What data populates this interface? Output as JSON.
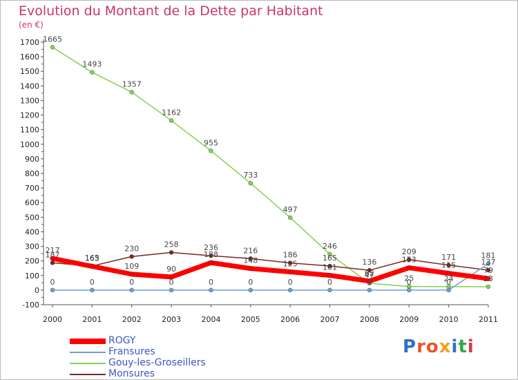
{
  "header": {
    "title": "Evolution du Montant de la Dette par Habitant",
    "subtitle": "(en €)"
  },
  "logo": {
    "text": "Proxiti",
    "colors": [
      "#2f6fcf",
      "#e8562a",
      "#e8562a",
      "#f0a020",
      "#2f6fcf",
      "#36a840",
      "#d83a4a"
    ]
  },
  "chart_data": {
    "type": "line",
    "title": "Evolution du Montant de la Dette par Habitant",
    "subtitle": "(en €)",
    "xlabel": "",
    "ylabel": "",
    "x": [
      "2000",
      "2001",
      "2002",
      "2003",
      "2004",
      "2005",
      "2006",
      "2007",
      "2008",
      "2009",
      "2010",
      "2011"
    ],
    "yticks": [
      "-100",
      "0",
      "100",
      "200",
      "300",
      "400",
      "500",
      "600",
      "700",
      "800",
      "900",
      "1000",
      "1100",
      "1200",
      "1300",
      "1400",
      "1500",
      "1600",
      "1700"
    ],
    "ylim": [
      -100,
      1700
    ],
    "grid": false,
    "legend_position": "bottom-left",
    "series": [
      {
        "name": "ROGY",
        "color": "#ff0000",
        "values": [
          217,
          163,
          109,
          90,
          188,
          148,
          125,
          101,
          62,
          153,
          115,
          79
        ]
      },
      {
        "name": "Fransures",
        "color": "#6f9fd0",
        "values": [
          0,
          0,
          0,
          0,
          0,
          0,
          0,
          0,
          0,
          0,
          0,
          181
        ]
      },
      {
        "name": "Gouy-les-Groseillers",
        "color": "#86cf4f",
        "values": [
          1665,
          1493,
          1357,
          1162,
          955,
          733,
          497,
          246,
          47,
          25,
          24,
          23
        ]
      },
      {
        "name": "Monsures",
        "color": "#7a2626",
        "values": [
          187,
          165,
          230,
          258,
          236,
          216,
          186,
          165,
          136,
          209,
          171,
          137
        ]
      }
    ]
  }
}
